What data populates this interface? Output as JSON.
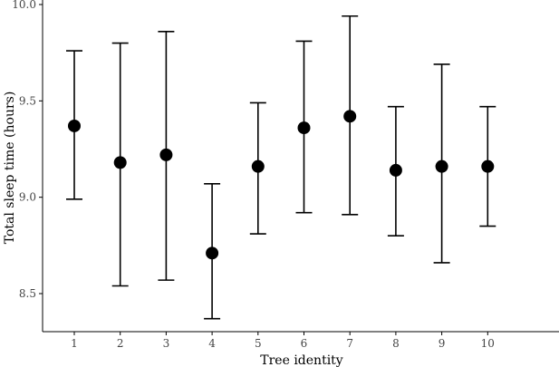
{
  "chart_data": {
    "type": "scatter",
    "xlabel": "Tree identity",
    "ylabel": "Total sleep time (hours)",
    "categories": [
      "1",
      "2",
      "3",
      "4",
      "5",
      "6",
      "7",
      "8",
      "9",
      "10"
    ],
    "x": [
      1,
      2,
      3,
      4,
      5,
      6,
      7,
      8,
      9,
      10
    ],
    "y": [
      9.37,
      9.18,
      9.22,
      8.71,
      9.16,
      9.36,
      9.42,
      9.14,
      9.16,
      9.16
    ],
    "y_lower": [
      8.99,
      8.54,
      8.57,
      8.37,
      8.81,
      8.92,
      8.91,
      8.8,
      8.66,
      8.85
    ],
    "y_upper": [
      9.76,
      9.8,
      9.86,
      9.07,
      9.49,
      9.81,
      9.94,
      9.47,
      9.69,
      9.47
    ],
    "ylim": [
      8.2,
      10.0
    ],
    "yticks": [
      "8.5",
      "9.0",
      "9.5",
      "10.0"
    ],
    "ytick_values": [
      8.5,
      9.0,
      9.5,
      10.0
    ],
    "grid": false,
    "color": "#000000"
  }
}
